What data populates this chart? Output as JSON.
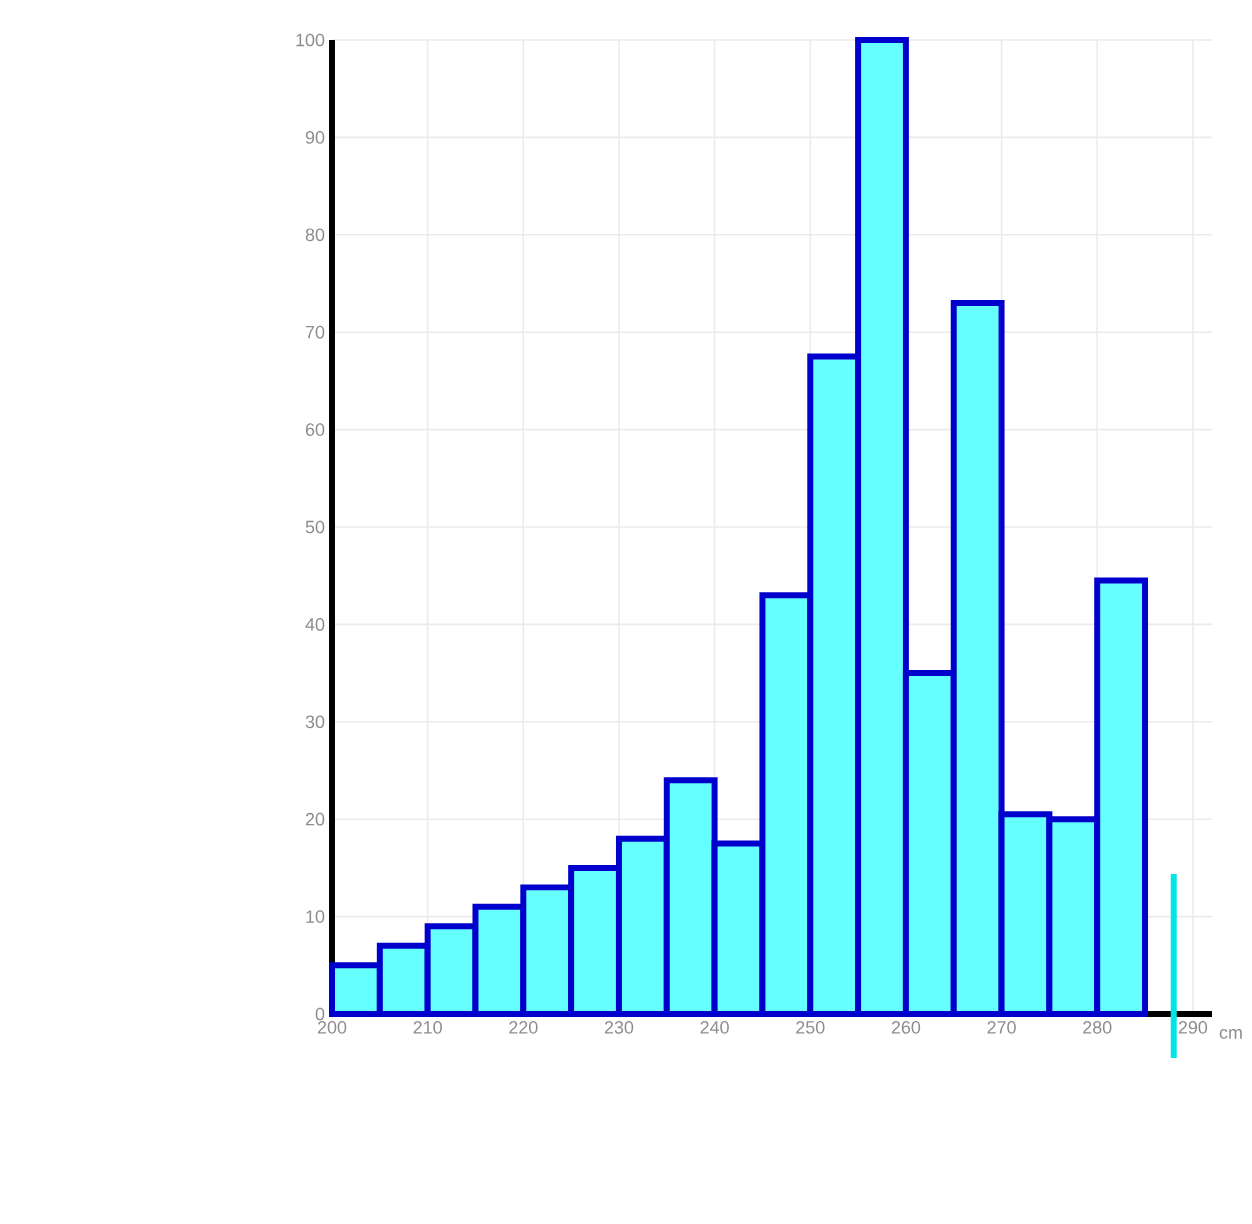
{
  "chart_data": {
    "type": "histogram",
    "xlabel": "cm",
    "bins": [
      200,
      205,
      210,
      215,
      220,
      225,
      230,
      235,
      240,
      245,
      250,
      255,
      260,
      265,
      270,
      275,
      280,
      285
    ],
    "values": [
      5,
      7,
      9,
      11,
      13,
      15,
      18,
      24,
      17.5,
      43,
      67.5,
      100,
      35,
      73,
      20.5,
      20,
      44.5
    ],
    "color": "#66ffff",
    "xlim": [
      200,
      292
    ],
    "xticks": [
      200,
      210,
      220,
      230,
      240,
      250,
      260,
      270,
      280,
      290
    ],
    "ylim": [
      0,
      100
    ],
    "yticks": [
      0,
      10,
      20,
      30,
      40,
      50,
      60,
      70,
      80,
      90,
      100
    ],
    "grid": true,
    "ref_lines": [
      {
        "axis": "x",
        "value": 288,
        "color": "#00e5e5"
      }
    ]
  }
}
